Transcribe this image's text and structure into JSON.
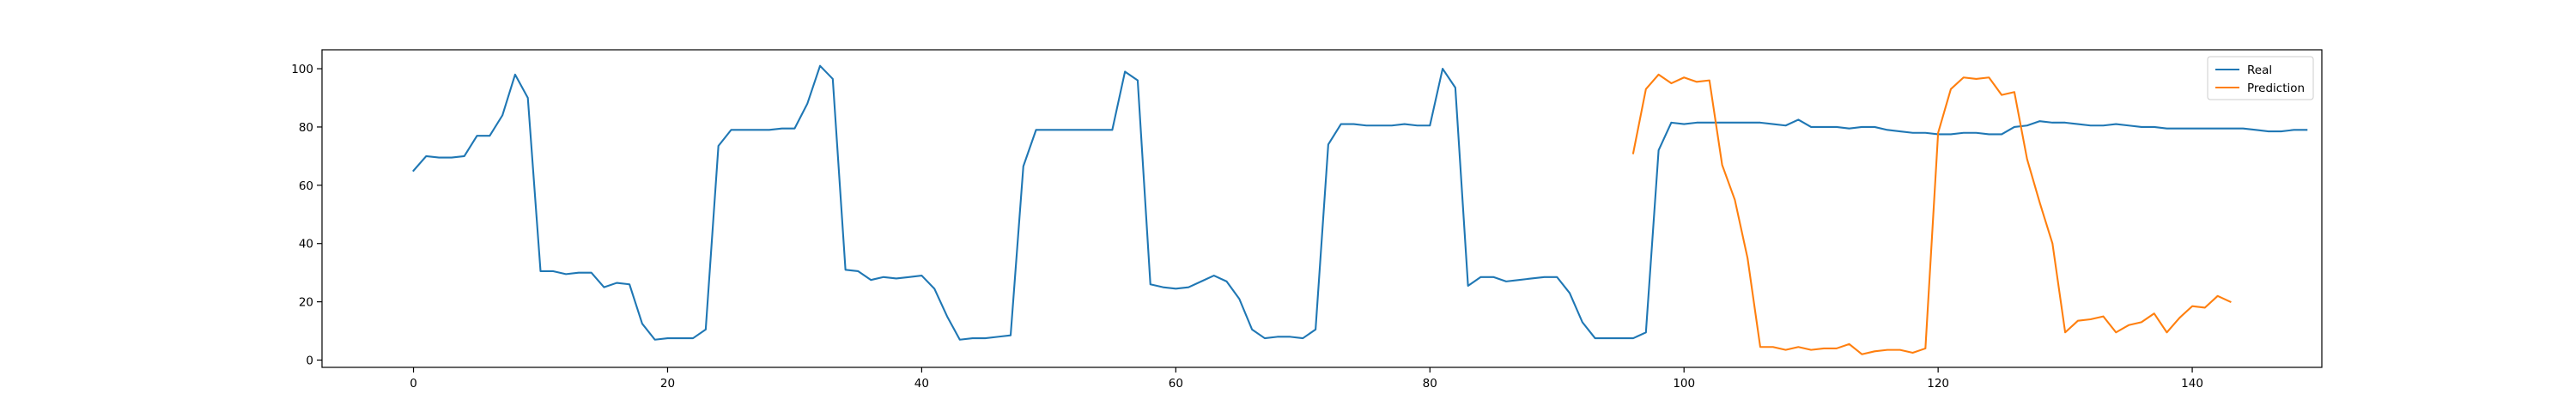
{
  "chart_data": {
    "type": "line",
    "title": "",
    "xlabel": "",
    "ylabel": "",
    "xlim": [
      -7.2,
      150.2
    ],
    "ylim": [
      -2.5,
      106.5
    ],
    "xticks": [
      0,
      20,
      40,
      60,
      80,
      100,
      120,
      140
    ],
    "yticks": [
      0,
      20,
      40,
      60,
      80,
      100
    ],
    "grid": false,
    "legend_position": "top-right",
    "series": [
      {
        "name": "Real",
        "color": "#1f77b4",
        "x_start": 0,
        "values": [
          65,
          70,
          69.5,
          69.5,
          70,
          77,
          77,
          84,
          98,
          90,
          30.5,
          30.5,
          29.5,
          30,
          30,
          25,
          26.5,
          26,
          12.5,
          7,
          7.5,
          7.5,
          7.5,
          10.5,
          73.5,
          79,
          79,
          79,
          79,
          79.5,
          79.5,
          88,
          101,
          96.5,
          31,
          30.5,
          27.5,
          28.5,
          28,
          28.5,
          29,
          24.5,
          15,
          7,
          7.5,
          7.5,
          8,
          8.5,
          66.5,
          79,
          79,
          79,
          79,
          79,
          79,
          79,
          99,
          96,
          26,
          25,
          24.5,
          25,
          27,
          29,
          27,
          21,
          10.5,
          7.5,
          8,
          8,
          7.5,
          10.5,
          74,
          81,
          81,
          80.5,
          80.5,
          80.5,
          81,
          80.5,
          80.5,
          100,
          93.5,
          25.5,
          28.5,
          28.5,
          27,
          27.5,
          28,
          28.5,
          28.5,
          23,
          13,
          7.5,
          7.5,
          7.5,
          7.5,
          9.5,
          72,
          81.5,
          81,
          81.5,
          81.5,
          81.5,
          81.5,
          81.5,
          81.5,
          81,
          80.5,
          82.5,
          80,
          80,
          80,
          79.5,
          80,
          80,
          79,
          78.5,
          78,
          78,
          77.5,
          77.5,
          78,
          78,
          77.5,
          77.5,
          80,
          80.5,
          82,
          81.5,
          81.5,
          81,
          80.5,
          80.5,
          81,
          80.5,
          80,
          80,
          79.5,
          79.5,
          79.5,
          79.5,
          79.5,
          79.5,
          79.5,
          79,
          78.5,
          78.5,
          79,
          79
        ]
      },
      {
        "name": "Prediction",
        "color": "#ff7f0e",
        "x_start": 96,
        "values": [
          71,
          93,
          98,
          95,
          97,
          95.5,
          96,
          67,
          55,
          35,
          4.5,
          4.5,
          3.5,
          4.5,
          3.5,
          4,
          4,
          5.5,
          2,
          3,
          3.5,
          3.5,
          2.5,
          4,
          78,
          93,
          97,
          96.5,
          97,
          91,
          92,
          69,
          54,
          40,
          9.5,
          13.5,
          14,
          15,
          9.5,
          12,
          13,
          16,
          9.5,
          14.5,
          18.5,
          18,
          22,
          20
        ]
      }
    ]
  }
}
